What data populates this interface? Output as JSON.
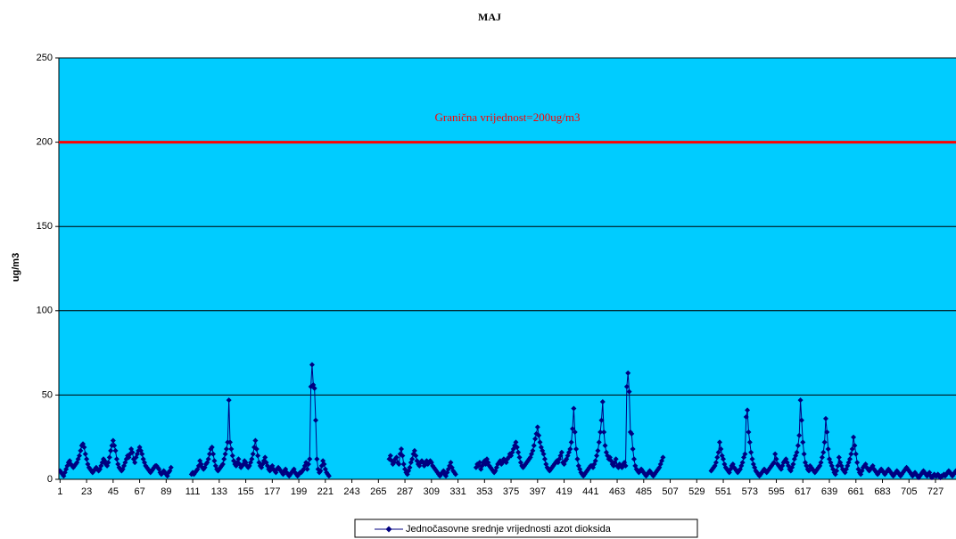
{
  "chart_data": {
    "type": "line",
    "title": "MAJ",
    "y_label": "ug/m3",
    "background": "#00ccff",
    "grid": true,
    "legend": "bottom",
    "xlim": [
      0,
      744
    ],
    "ylim": [
      0,
      250
    ],
    "yticks": [
      0,
      50,
      100,
      150,
      200,
      250
    ],
    "xticks": [
      1,
      23,
      45,
      67,
      89,
      111,
      133,
      155,
      177,
      199,
      221,
      243,
      265,
      287,
      309,
      331,
      353,
      375,
      397,
      419,
      441,
      463,
      485,
      507,
      529,
      551,
      573,
      595,
      617,
      639,
      661,
      683,
      705,
      727
    ],
    "hline": {
      "value": 200,
      "color": "#ff0000",
      "label": "Granična vrijednost=200ug/m3"
    },
    "x": [
      1,
      2,
      3,
      4,
      5,
      6,
      7,
      8,
      9,
      10,
      11,
      12,
      13,
      14,
      15,
      16,
      17,
      18,
      19,
      20,
      21,
      22,
      23,
      24,
      25,
      26,
      27,
      28,
      29,
      30,
      31,
      32,
      33,
      34,
      35,
      36,
      37,
      38,
      39,
      40,
      41,
      42,
      43,
      44,
      45,
      46,
      47,
      48,
      49,
      50,
      51,
      52,
      53,
      54,
      55,
      56,
      57,
      58,
      59,
      60,
      61,
      62,
      63,
      64,
      65,
      66,
      67,
      68,
      69,
      70,
      71,
      72,
      73,
      74,
      75,
      76,
      77,
      78,
      79,
      80,
      81,
      82,
      83,
      84,
      85,
      86,
      87,
      88,
      89,
      90,
      91,
      92,
      93,
      94,
      95,
      96,
      97,
      98,
      99,
      100,
      101,
      102,
      103,
      104,
      105,
      106,
      107,
      108,
      109,
      110,
      111,
      112,
      113,
      114,
      115,
      116,
      117,
      118,
      119,
      120,
      121,
      122,
      123,
      124,
      125,
      126,
      127,
      128,
      129,
      130,
      131,
      132,
      133,
      134,
      135,
      136,
      137,
      138,
      139,
      140,
      141,
      142,
      143,
      144,
      145,
      146,
      147,
      148,
      149,
      150,
      151,
      152,
      153,
      154,
      155,
      156,
      157,
      158,
      159,
      160,
      161,
      162,
      163,
      164,
      165,
      166,
      167,
      168,
      169,
      170,
      171,
      172,
      173,
      174,
      175,
      176,
      177,
      178,
      179,
      180,
      181,
      182,
      183,
      184,
      185,
      186,
      187,
      188,
      189,
      190,
      191,
      192,
      193,
      194,
      195,
      196,
      197,
      198,
      199,
      200,
      201,
      202,
      203,
      204,
      205,
      206,
      207,
      208,
      209,
      210,
      211,
      212,
      213,
      214,
      215,
      216,
      217,
      218,
      219,
      220,
      221,
      222,
      223,
      224,
      225,
      226,
      227,
      228,
      229,
      230,
      231,
      232,
      233,
      234,
      235,
      236,
      237,
      238,
      239,
      240,
      241,
      242,
      243,
      244,
      245,
      246,
      247,
      248,
      249,
      250,
      251,
      252,
      253,
      254,
      255,
      256,
      257,
      258,
      259,
      260,
      261,
      262,
      263,
      264,
      265,
      266,
      267,
      268,
      269,
      270,
      271,
      272,
      273,
      274,
      275,
      276,
      277,
      278,
      279,
      280,
      281,
      282,
      283,
      284,
      285,
      286,
      287,
      288,
      289,
      290,
      291,
      292,
      293,
      294,
      295,
      296,
      297,
      298,
      299,
      300,
      301,
      302,
      303,
      304,
      305,
      306,
      307,
      308,
      309,
      310,
      311,
      312,
      313,
      314,
      315,
      316,
      317,
      318,
      319,
      320,
      321,
      322,
      323,
      324,
      325,
      326,
      327,
      328,
      329,
      330,
      331,
      332,
      333,
      334,
      335,
      336,
      337,
      338,
      339,
      340,
      341,
      342,
      343,
      344,
      345,
      346,
      347,
      348,
      349,
      350,
      351,
      352,
      353,
      354,
      355,
      356,
      357,
      358,
      359,
      360,
      361,
      362,
      363,
      364,
      365,
      366,
      367,
      368,
      369,
      370,
      371,
      372,
      373,
      374,
      375,
      376,
      377,
      378,
      379,
      380,
      381,
      382,
      383,
      384,
      385,
      386,
      387,
      388,
      389,
      390,
      391,
      392,
      393,
      394,
      395,
      396,
      397,
      398,
      399,
      400,
      401,
      402,
      403,
      404,
      405,
      406,
      407,
      408,
      409,
      410,
      411,
      412,
      413,
      414,
      415,
      416,
      417,
      418,
      419,
      420,
      421,
      422,
      423,
      424,
      425,
      426,
      427,
      428,
      429,
      430,
      431,
      432,
      433,
      434,
      435,
      436,
      437,
      438,
      439,
      440,
      441,
      442,
      443,
      444,
      445,
      446,
      447,
      448,
      449,
      450,
      451,
      452,
      453,
      454,
      455,
      456,
      457,
      458,
      459,
      460,
      461,
      462,
      463,
      464,
      465,
      466,
      467,
      468,
      469,
      470,
      471,
      472,
      473,
      474,
      475,
      476,
      477,
      478,
      479,
      480,
      481,
      482,
      483,
      484,
      485,
      486,
      487,
      488,
      489,
      490,
      491,
      492,
      493,
      494,
      495,
      496,
      497,
      498,
      499,
      500,
      501,
      502,
      503,
      504,
      505,
      506,
      507,
      508,
      509,
      510,
      511,
      512,
      513,
      514,
      515,
      516,
      517,
      518,
      519,
      520,
      521,
      522,
      523,
      524,
      525,
      526,
      527,
      528,
      529,
      530,
      531,
      532,
      533,
      534,
      535,
      536,
      537,
      538,
      539,
      540,
      541,
      542,
      543,
      544,
      545,
      546,
      547,
      548,
      549,
      550,
      551,
      552,
      553,
      554,
      555,
      556,
      557,
      558,
      559,
      560,
      561,
      562,
      563,
      564,
      565,
      566,
      567,
      568,
      569,
      570,
      571,
      572,
      573,
      574,
      575,
      576,
      577,
      578,
      579,
      580,
      581,
      582,
      583,
      584,
      585,
      586,
      587,
      588,
      589,
      590,
      591,
      592,
      593,
      594,
      595,
      596,
      597,
      598,
      599,
      600,
      601,
      602,
      603,
      604,
      605,
      606,
      607,
      608,
      609,
      610,
      611,
      612,
      613,
      614,
      615,
      616,
      617,
      618,
      619,
      620,
      621,
      622,
      623,
      624,
      625,
      626,
      627,
      628,
      629,
      630,
      631,
      632,
      633,
      634,
      635,
      636,
      637,
      638,
      639,
      640,
      641,
      642,
      643,
      644,
      645,
      646,
      647,
      648,
      649,
      650,
      651,
      652,
      653,
      654,
      655,
      656,
      657,
      658,
      659,
      660,
      661,
      662,
      663,
      664,
      665,
      666,
      667,
      668,
      669,
      670,
      671,
      672,
      673,
      674,
      675,
      676,
      677,
      678,
      679,
      680,
      681,
      682,
      683,
      684,
      685,
      686,
      687,
      688,
      689,
      690,
      691,
      692,
      693,
      694,
      695,
      696,
      697,
      698,
      699,
      700,
      701,
      702,
      703,
      704,
      705,
      706,
      707,
      708,
      709,
      710,
      711,
      712,
      713,
      714,
      715,
      716,
      717,
      718,
      719,
      720,
      721,
      722,
      723,
      724,
      725,
      726,
      727,
      728,
      729,
      730,
      731,
      732,
      733,
      734,
      735,
      736,
      737,
      738,
      739,
      740,
      741,
      742,
      743,
      744
    ],
    "series": [
      {
        "name": "Jednočasovne srednje vrijednosti azot dioksida",
        "color": "#000080",
        "values": [
          5,
          4,
          3,
          2,
          4,
          6,
          8,
          10,
          11,
          9,
          8,
          7,
          8,
          9,
          10,
          12,
          14,
          17,
          20,
          21,
          19,
          15,
          12,
          9,
          7,
          6,
          5,
          4,
          5,
          6,
          7,
          6,
          5,
          6,
          8,
          10,
          12,
          11,
          9,
          8,
          10,
          13,
          17,
          20,
          23,
          20,
          17,
          12,
          9,
          7,
          6,
          5,
          6,
          8,
          10,
          12,
          14,
          13,
          15,
          18,
          16,
          12,
          10,
          13,
          15,
          17,
          19,
          17,
          15,
          12,
          10,
          8,
          7,
          6,
          5,
          4,
          5,
          6,
          7,
          8,
          8,
          7,
          6,
          4,
          3,
          4,
          5,
          4,
          3,
          2,
          4,
          5,
          7,
          null,
          null,
          null,
          null,
          null,
          null,
          null,
          null,
          null,
          null,
          null,
          null,
          null,
          null,
          null,
          null,
          3,
          4,
          3,
          4,
          5,
          6,
          8,
          11,
          9,
          7,
          6,
          7,
          9,
          10,
          12,
          15,
          18,
          19,
          15,
          11,
          8,
          6,
          5,
          6,
          7,
          8,
          9,
          12,
          15,
          18,
          22,
          47,
          22,
          18,
          14,
          11,
          9,
          8,
          10,
          12,
          9,
          7,
          8,
          9,
          11,
          10,
          8,
          7,
          8,
          10,
          12,
          15,
          19,
          23,
          18,
          14,
          10,
          8,
          7,
          9,
          11,
          13,
          10,
          8,
          6,
          5,
          7,
          8,
          6,
          5,
          4,
          6,
          7,
          6,
          5,
          4,
          3,
          5,
          6,
          4,
          3,
          2,
          3,
          4,
          5,
          6,
          4,
          3,
          2,
          3,
          4,
          4,
          5,
          6,
          8,
          10,
          6,
          9,
          12,
          55,
          68,
          56,
          54,
          35,
          12,
          6,
          4,
          5,
          8,
          11,
          9,
          6,
          4,
          3,
          2,
          null,
          null,
          null,
          null,
          null,
          null,
          null,
          null,
          null,
          null,
          null,
          null,
          null,
          null,
          null,
          null,
          null,
          null,
          null,
          null,
          null,
          null,
          null,
          null,
          null,
          null,
          null,
          null,
          null,
          null,
          null,
          null,
          null,
          null,
          null,
          null,
          null,
          null,
          null,
          null,
          null,
          null,
          null,
          null,
          null,
          null,
          null,
          null,
          null,
          12,
          14,
          11,
          9,
          10,
          12,
          13,
          10,
          9,
          15,
          18,
          14,
          9,
          6,
          4,
          3,
          5,
          7,
          10,
          12,
          15,
          17,
          14,
          11,
          9,
          8,
          10,
          11,
          10,
          8,
          9,
          11,
          9,
          10,
          11,
          10,
          8,
          7,
          6,
          5,
          4,
          3,
          2,
          3,
          4,
          5,
          3,
          2,
          4,
          6,
          8,
          10,
          7,
          5,
          4,
          3,
          null,
          null,
          null,
          null,
          null,
          null,
          null,
          null,
          null,
          null,
          null,
          null,
          null,
          null,
          null,
          null,
          7,
          9,
          8,
          10,
          6,
          8,
          10,
          11,
          9,
          12,
          10,
          8,
          7,
          6,
          5,
          4,
          5,
          7,
          9,
          10,
          11,
          9,
          10,
          12,
          11,
          10,
          12,
          13,
          15,
          14,
          16,
          18,
          20,
          22,
          19,
          16,
          13,
          10,
          8,
          7,
          8,
          9,
          10,
          11,
          12,
          13,
          15,
          17,
          20,
          24,
          27,
          31,
          26,
          22,
          19,
          17,
          15,
          12,
          9,
          7,
          6,
          5,
          6,
          7,
          8,
          9,
          10,
          11,
          10,
          12,
          14,
          16,
          10,
          9,
          11,
          12,
          14,
          16,
          18,
          22,
          30,
          42,
          28,
          18,
          12,
          8,
          6,
          4,
          3,
          2,
          3,
          4,
          5,
          6,
          7,
          8,
          8,
          7,
          9,
          11,
          14,
          17,
          22,
          28,
          35,
          46,
          28,
          20,
          16,
          14,
          12,
          13,
          11,
          9,
          8,
          10,
          12,
          8,
          7,
          9,
          8,
          7,
          9,
          10,
          8,
          55,
          63,
          52,
          28,
          27,
          18,
          12,
          8,
          6,
          5,
          4,
          5,
          6,
          5,
          4,
          3,
          2,
          3,
          4,
          5,
          4,
          3,
          2,
          3,
          4,
          5,
          6,
          7,
          9,
          11,
          13,
          null,
          null,
          null,
          null,
          null,
          null,
          null,
          null,
          null,
          null,
          null,
          null,
          null,
          null,
          null,
          null,
          null,
          null,
          null,
          null,
          null,
          null,
          null,
          null,
          null,
          null,
          null,
          null,
          null,
          null,
          null,
          null,
          null,
          null,
          null,
          null,
          null,
          null,
          null,
          5,
          6,
          7,
          8,
          10,
          13,
          16,
          22,
          18,
          14,
          12,
          9,
          7,
          6,
          5,
          4,
          6,
          8,
          9,
          7,
          6,
          5,
          4,
          5,
          6,
          8,
          10,
          13,
          15,
          37,
          41,
          28,
          22,
          16,
          12,
          9,
          7,
          5,
          4,
          3,
          2,
          3,
          4,
          5,
          6,
          5,
          4,
          5,
          6,
          7,
          8,
          9,
          10,
          15,
          12,
          9,
          8,
          7,
          6,
          8,
          10,
          11,
          12,
          10,
          8,
          6,
          5,
          7,
          9,
          12,
          14,
          16,
          20,
          26,
          47,
          35,
          22,
          15,
          10,
          8,
          6,
          5,
          8,
          7,
          6,
          5,
          4,
          5,
          6,
          7,
          8,
          10,
          13,
          16,
          22,
          36,
          28,
          18,
          12,
          10,
          8,
          6,
          4,
          3,
          5,
          8,
          13,
          10,
          8,
          6,
          5,
          4,
          6,
          8,
          10,
          12,
          15,
          18,
          25,
          20,
          15,
          10,
          6,
          4,
          3,
          5,
          7,
          8,
          9,
          7,
          6,
          5,
          6,
          7,
          8,
          6,
          5,
          4,
          3,
          4,
          5,
          6,
          5,
          4,
          3,
          4,
          5,
          6,
          5,
          4,
          3,
          2,
          3,
          4,
          5,
          4,
          3,
          2,
          3,
          4,
          5,
          6,
          7,
          6,
          5,
          4,
          3,
          2,
          3,
          4,
          3,
          2,
          1,
          2,
          3,
          4,
          5,
          4,
          3,
          2,
          3,
          4,
          2,
          1,
          2,
          3,
          2,
          2,
          3,
          2,
          1,
          2,
          2,
          3,
          2,
          3,
          4,
          5,
          4,
          3,
          2,
          3,
          4,
          5
        ]
      }
    ]
  }
}
